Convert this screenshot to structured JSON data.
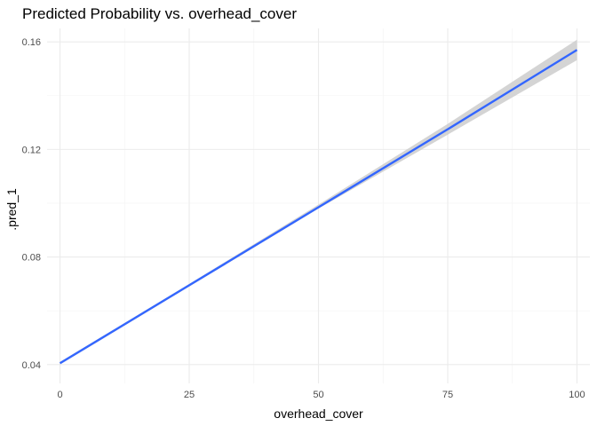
{
  "chart_data": {
    "type": "line",
    "title": "Predicted Probability vs. overhead_cover",
    "xlabel": "overhead_cover",
    "ylabel": ".pred_1",
    "xlim": [
      -2.5,
      102.5
    ],
    "ylim": [
      0.033,
      0.165
    ],
    "x_ticks": [
      0,
      25,
      50,
      75,
      100
    ],
    "y_ticks": [
      0.04,
      0.08,
      0.12,
      0.16
    ],
    "x_tick_labels": [
      "0",
      "25",
      "50",
      "75",
      "100"
    ],
    "y_tick_labels": [
      "0.04",
      "0.08",
      "0.12",
      "0.16"
    ],
    "grid": true,
    "series": [
      {
        "line_color": "#3366FF",
        "ribbon_color": "#cccccc",
        "x": [
          0,
          25,
          50,
          75,
          100
        ],
        "y": [
          0.0405,
          0.0695,
          0.0985,
          0.1275,
          0.157
        ],
        "y_lower": [
          0.04,
          0.069,
          0.098,
          0.1255,
          0.1532
        ],
        "y_upper": [
          0.041,
          0.07,
          0.0995,
          0.1295,
          0.1608
        ]
      }
    ]
  }
}
